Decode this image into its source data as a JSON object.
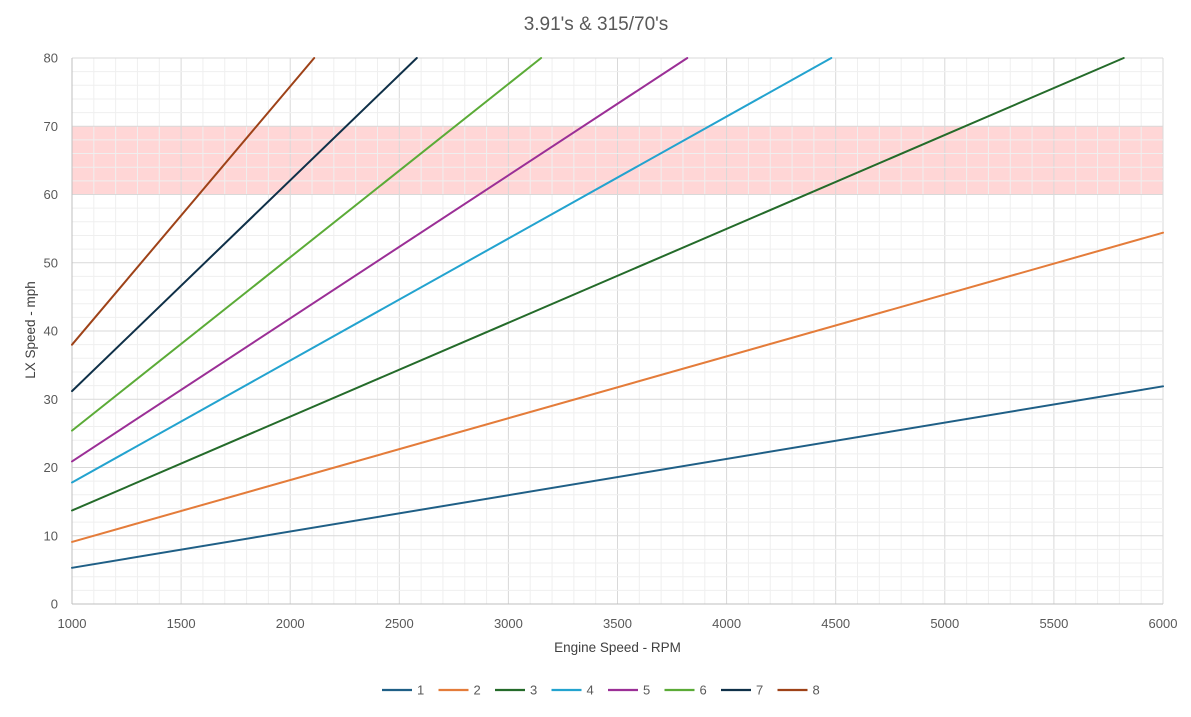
{
  "chart_data": {
    "type": "line",
    "title": "3.91's & 315/70's",
    "xlabel": "Engine Speed - RPM",
    "ylabel": "LX Speed - mph",
    "xlim": [
      1000,
      6000
    ],
    "ylim": [
      0,
      80
    ],
    "x_ticks": [
      1000,
      1500,
      2000,
      2500,
      3000,
      3500,
      4000,
      4500,
      5000,
      5500,
      6000
    ],
    "y_ticks": [
      0,
      10,
      20,
      30,
      40,
      50,
      60,
      70,
      80
    ],
    "x_minor_step": 100,
    "y_minor_step": 2,
    "grid": true,
    "legend_position": "bottom",
    "highlight_band": {
      "y_from": 60,
      "y_to": 70,
      "color": "#ffd6d6"
    },
    "series": [
      {
        "name": "1",
        "color": "#1f5f86",
        "x": [
          1000,
          6000
        ],
        "y": [
          5.3,
          31.9
        ]
      },
      {
        "name": "2",
        "color": "#e47c3a",
        "x": [
          1000,
          6000
        ],
        "y": [
          9.1,
          54.4
        ]
      },
      {
        "name": "3",
        "color": "#246b2a",
        "x": [
          1000,
          5820
        ],
        "y": [
          13.7,
          80
        ]
      },
      {
        "name": "4",
        "color": "#23a3cf",
        "x": [
          1000,
          4480
        ],
        "y": [
          17.8,
          80
        ]
      },
      {
        "name": "5",
        "color": "#9b2f96",
        "x": [
          1000,
          3820
        ],
        "y": [
          20.9,
          80
        ]
      },
      {
        "name": "6",
        "color": "#5bab37",
        "x": [
          1000,
          3150
        ],
        "y": [
          25.4,
          80
        ]
      },
      {
        "name": "7",
        "color": "#0f3048",
        "x": [
          1000,
          2580
        ],
        "y": [
          31.2,
          80
        ]
      },
      {
        "name": "8",
        "color": "#9e4218",
        "x": [
          1000,
          2110
        ],
        "y": [
          38.0,
          80
        ]
      }
    ]
  }
}
